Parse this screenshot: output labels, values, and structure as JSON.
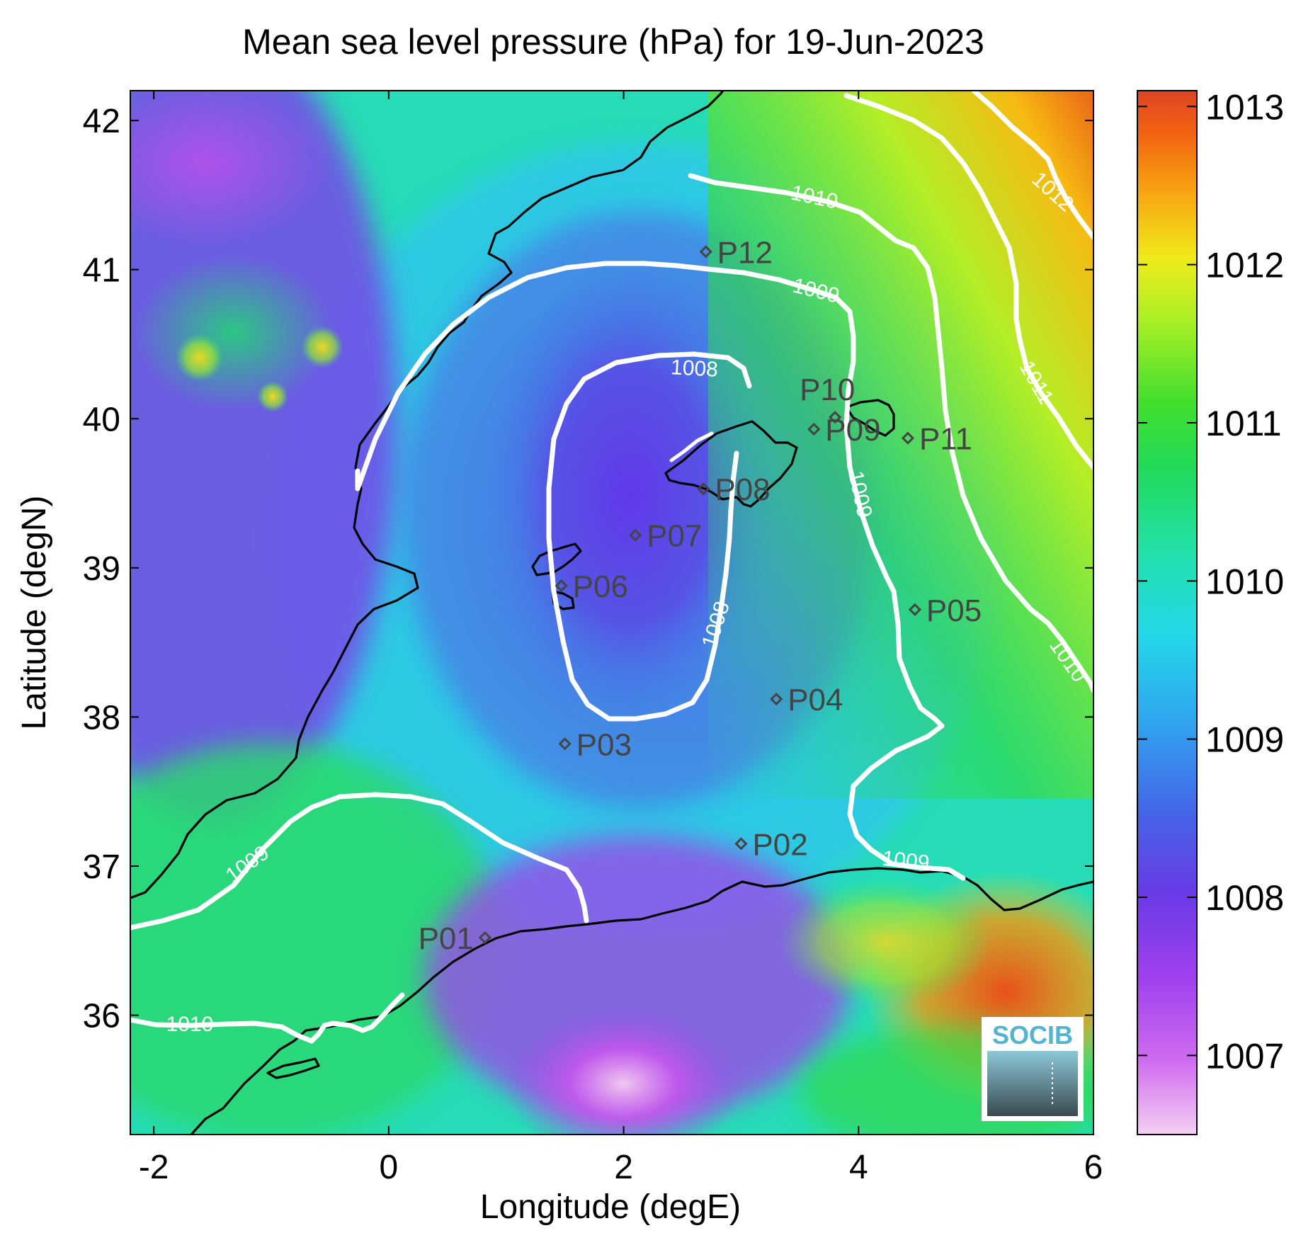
{
  "title": "Mean sea level pressure (hPa) for 19-Jun-2023",
  "x_axis": {
    "label": "Longitude (degE)",
    "range": [
      -2.2,
      6
    ],
    "ticks": [
      -2,
      0,
      2,
      4,
      6
    ],
    "tick_labels": [
      "-2",
      "0",
      "2",
      "4",
      "6"
    ]
  },
  "y_axis": {
    "label": "Latitude (degN)",
    "range": [
      35.2,
      42.2
    ],
    "ticks": [
      36,
      37,
      38,
      39,
      40,
      41,
      42
    ],
    "tick_labels": [
      "36",
      "37",
      "38",
      "39",
      "40",
      "41",
      "42"
    ]
  },
  "colorbar": {
    "range": [
      1006.5,
      1013.1
    ],
    "ticks": [
      1007,
      1008,
      1009,
      1010,
      1011,
      1012,
      1013
    ],
    "tick_labels": [
      "1007",
      "1008",
      "1009",
      "1010",
      "1011",
      "1012",
      "1013"
    ],
    "colors": [
      "#f2c4f0",
      "#c64df0",
      "#7440e6",
      "#3f7de8",
      "#22c8f0",
      "#24e0b8",
      "#22d860",
      "#33e033",
      "#a8f026",
      "#f0f020",
      "#f8b010",
      "#f26010",
      "#de4422"
    ]
  },
  "contour_labels": [
    "1008",
    "1008",
    "1009",
    "1009",
    "1009",
    "1009",
    "1010",
    "1010",
    "1010",
    "1011",
    "1012"
  ],
  "stations": [
    {
      "id": "P01",
      "lon": 0.82,
      "lat": 36.52
    },
    {
      "id": "P02",
      "lon": 3.0,
      "lat": 37.15
    },
    {
      "id": "P03",
      "lon": 1.5,
      "lat": 37.82
    },
    {
      "id": "P04",
      "lon": 3.3,
      "lat": 38.12
    },
    {
      "id": "P05",
      "lon": 4.48,
      "lat": 38.72
    },
    {
      "id": "P06",
      "lon": 1.47,
      "lat": 38.88
    },
    {
      "id": "P07",
      "lon": 2.1,
      "lat": 39.22
    },
    {
      "id": "P08",
      "lon": 2.68,
      "lat": 39.53
    },
    {
      "id": "P09",
      "lon": 3.62,
      "lat": 39.93
    },
    {
      "id": "P10",
      "lon": 3.8,
      "lat": 40.01
    },
    {
      "id": "P11",
      "lon": 4.42,
      "lat": 39.87
    },
    {
      "id": "P12",
      "lon": 2.7,
      "lat": 41.12
    }
  ],
  "logo": {
    "text": "SOCIB",
    "color": "#52b4d2"
  }
}
